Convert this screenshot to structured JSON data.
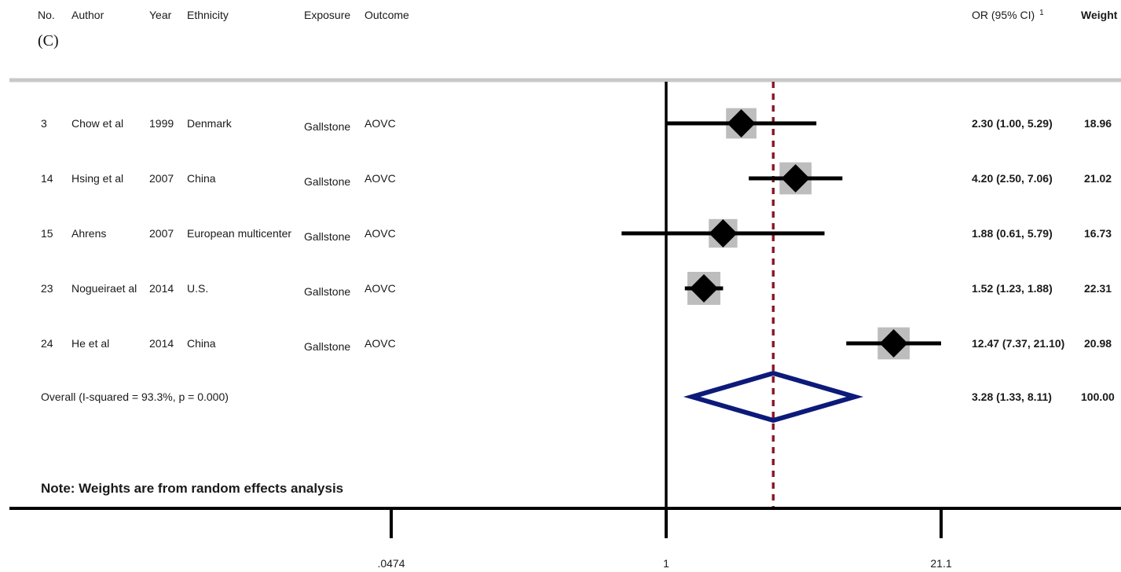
{
  "panel_label": "(C)",
  "columns": {
    "no": "No.",
    "author": "Author",
    "year": "Year",
    "ethnicity": "Ethnicity",
    "exposure": "Exposure",
    "outcome": "Outcome",
    "or": "OR (95% CI)",
    "or_sup": "1",
    "weight": "Weight"
  },
  "note": "Note: Weights  are from random  effects analysis",
  "colors": {
    "box": "#bdbdbd",
    "marker": "#000000",
    "ref_line": "#000000",
    "overall_line": "#8b1a2b",
    "diamond": "#0c1a7a",
    "separator": "#c8c8c8"
  },
  "chart_data": {
    "type": "forest",
    "scale": "log",
    "xlim": [
      0.0474,
      21.1
    ],
    "xticks": [
      {
        "value": 0.0474,
        "label": ".0474"
      },
      {
        "value": 1,
        "label": "1"
      },
      {
        "value": 21.1,
        "label": "21.1"
      }
    ],
    "null_value": 1,
    "studies": [
      {
        "no": "3",
        "author": "Chow et al",
        "year": "1999",
        "ethnicity": "Denmark",
        "exposure": "Gallstone",
        "outcome": "AOVC",
        "or": 2.3,
        "lo": 1.0,
        "hi": 5.29,
        "ci_text": "2.30 (1.00, 5.29)",
        "weight": 18.96,
        "weight_text": "18.96"
      },
      {
        "no": "14",
        "author": "Hsing et al",
        "year": "2007",
        "ethnicity": "China",
        "exposure": "Gallstone",
        "outcome": "AOVC",
        "or": 4.2,
        "lo": 2.5,
        "hi": 7.06,
        "ci_text": "4.20 (2.50, 7.06)",
        "weight": 21.02,
        "weight_text": "21.02"
      },
      {
        "no": "15",
        "author": "Ahrens",
        "year": "2007",
        "ethnicity": "European multicenter",
        "exposure": "Gallstone",
        "outcome": "AOVC",
        "or": 1.88,
        "lo": 0.61,
        "hi": 5.79,
        "ci_text": "1.88 (0.61, 5.79)",
        "weight": 16.73,
        "weight_text": "16.73"
      },
      {
        "no": "23",
        "author": "Nogueiraet al",
        "year": "2014",
        "ethnicity": "U.S.",
        "exposure": "Gallstone",
        "outcome": "AOVC",
        "or": 1.52,
        "lo": 1.23,
        "hi": 1.88,
        "ci_text": "1.52 (1.23, 1.88)",
        "weight": 22.31,
        "weight_text": "22.31"
      },
      {
        "no": "24",
        "author": "He et al",
        "year": "2014",
        "ethnicity": "China",
        "exposure": "Gallstone",
        "outcome": "AOVC",
        "or": 12.47,
        "lo": 7.37,
        "hi": 21.1,
        "ci_text": "12.47 (7.37, 21.10)",
        "weight": 20.98,
        "weight_text": "20.98"
      }
    ],
    "overall": {
      "label": "Overall  (I-squared = 93.3%, p = 0.000)",
      "or": 3.28,
      "lo": 1.33,
      "hi": 8.11,
      "ci_text": "3.28 (1.33, 8.11)",
      "weight_text": "100.00"
    }
  }
}
